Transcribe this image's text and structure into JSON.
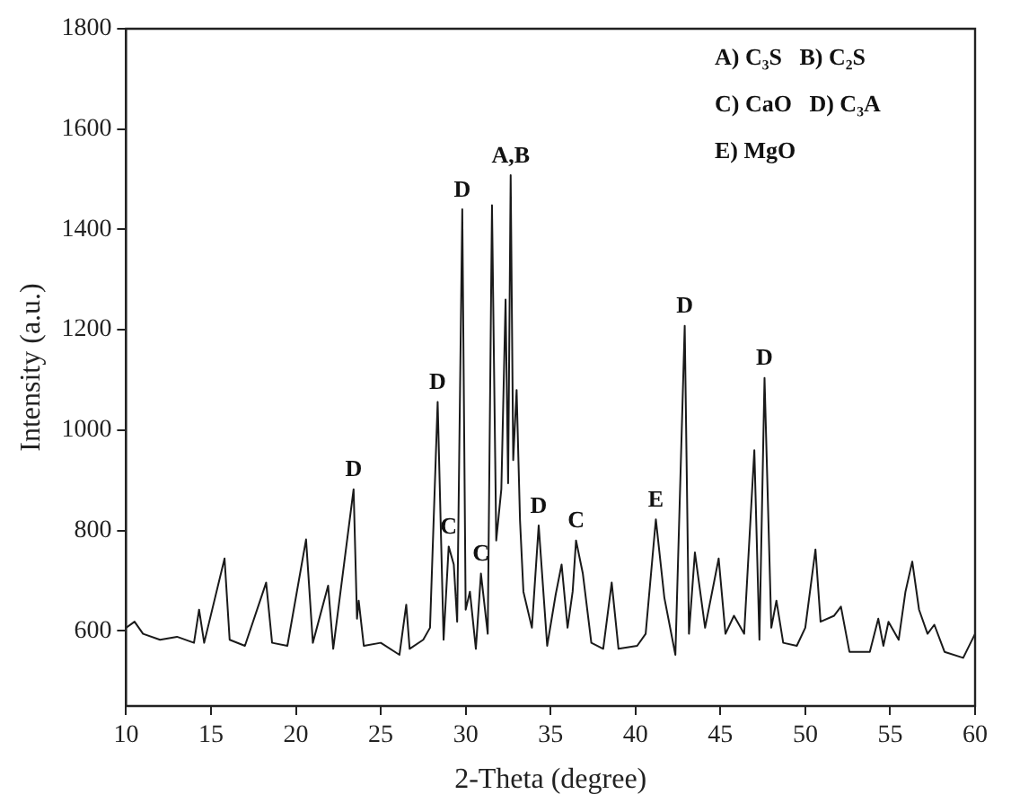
{
  "chart_data": {
    "type": "line",
    "xlabel": "2-Theta (degree)",
    "ylabel": "Intensity (a.u.)",
    "xlim": [
      10,
      60
    ],
    "xticks": [
      10,
      15,
      20,
      25,
      30,
      35,
      40,
      45,
      50,
      55,
      60
    ],
    "ylim": [
      450,
      1800
    ],
    "yticks": [
      600,
      800,
      1000,
      1200,
      1400,
      1600,
      1800
    ],
    "grid": false,
    "legend": false,
    "marker": "none",
    "line_style": "solid",
    "series": [
      {
        "color": "#1a1a1a",
        "x": [
          10,
          10.5,
          11,
          12,
          13,
          14,
          14.3,
          14.6,
          15.8,
          16.1,
          17,
          18.25,
          18.6,
          19.5,
          20.6,
          21,
          21.9,
          22.2,
          23.4,
          23.6,
          23.7,
          24,
          25,
          26.1,
          26.5,
          26.7,
          27.5,
          27.9,
          28.35,
          28.7,
          29,
          29.3,
          29.5,
          29.8,
          30,
          30.25,
          30.6,
          30.9,
          31.3,
          31.55,
          31.8,
          32.1,
          32.35,
          32.5,
          32.65,
          32.8,
          33,
          33.2,
          33.4,
          33.9,
          34.3,
          34.8,
          35.3,
          35.65,
          36,
          36.3,
          36.5,
          36.9,
          37.4,
          38.1,
          38.6,
          39,
          40.1,
          40.6,
          41.2,
          41.7,
          42.35,
          42.9,
          43.15,
          43.5,
          44.1,
          44.9,
          45.3,
          45.8,
          46.4,
          47,
          47.3,
          47.6,
          48,
          48.3,
          48.7,
          49.5,
          50,
          50.6,
          50.9,
          51.7,
          52.1,
          52.6,
          53.8,
          54.3,
          54.6,
          54.9,
          55.5,
          55.9,
          56.3,
          56.7,
          57.2,
          57.6,
          58.2,
          59.3,
          60
        ],
        "values": [
          606,
          618,
          594,
          582,
          588,
          576,
          642,
          576,
          744,
          582,
          570,
          696,
          576,
          570,
          782,
          576,
          690,
          564,
          882,
          624,
          660,
          570,
          576,
          552,
          652,
          564,
          582,
          606,
          1056,
          582,
          768,
          732,
          618,
          1440,
          642,
          678,
          564,
          714,
          594,
          1448,
          780,
          882,
          1260,
          894,
          1508,
          940,
          1080,
          820,
          678,
          606,
          810,
          570,
          672,
          732,
          606,
          678,
          780,
          714,
          576,
          564,
          696,
          564,
          570,
          594,
          822,
          666,
          552,
          1208,
          594,
          756,
          606,
          744,
          594,
          630,
          594,
          960,
          582,
          1104,
          606,
          660,
          576,
          570,
          606,
          762,
          618,
          630,
          648,
          558,
          558,
          624,
          570,
          618,
          582,
          678,
          738,
          642,
          594,
          612,
          558,
          546,
          594
        ]
      }
    ],
    "annotations": [
      "A) C₃S   B) C₂S",
      "C) CaO   D) C₃A",
      "E) MgO",
      {
        "text": "D",
        "x": 23.4,
        "y": 882
      },
      {
        "text": "D",
        "x": 28.35,
        "y": 1056
      },
      {
        "text": "C",
        "x": 29,
        "y": 768
      },
      {
        "text": "D",
        "x": 29.8,
        "y": 1440
      },
      {
        "text": "C",
        "x": 30.9,
        "y": 714
      },
      {
        "text": "A,B",
        "x": 32.65,
        "y": 1508
      },
      {
        "text": "D",
        "x": 34.3,
        "y": 810
      },
      {
        "text": "C",
        "x": 36.5,
        "y": 780
      },
      {
        "text": "E",
        "x": 41.2,
        "y": 822
      },
      {
        "text": "D",
        "x": 42.9,
        "y": 1208
      },
      {
        "text": "D",
        "x": 47.6,
        "y": 1104
      }
    ]
  }
}
